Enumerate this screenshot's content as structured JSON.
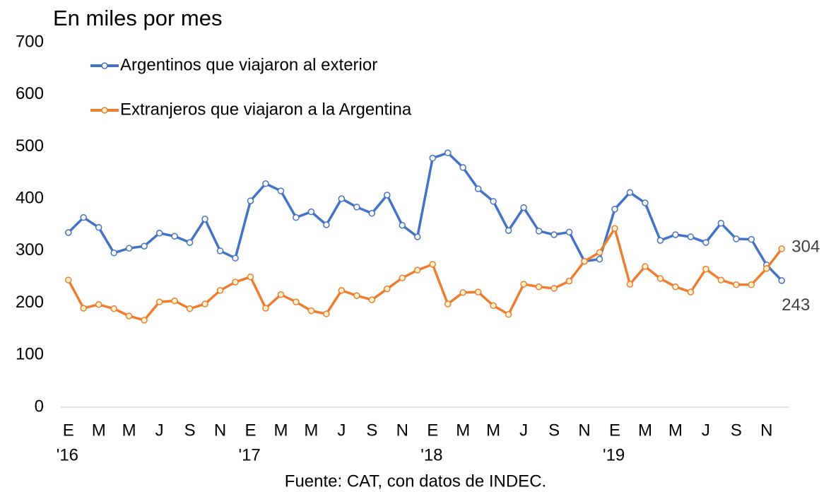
{
  "chart_data": {
    "type": "line",
    "title": "En miles por mes",
    "source": "Fuente: CAT, con datos de INDEC.",
    "categories": [
      "E",
      null,
      "M",
      null,
      "M",
      null,
      "J",
      null,
      "S",
      null,
      "N",
      null,
      "E",
      null,
      "M",
      null,
      "M",
      null,
      "J",
      null,
      "S",
      null,
      "N",
      null,
      "E",
      null,
      "M",
      null,
      "M",
      null,
      "J",
      null,
      "S",
      null,
      "N",
      null,
      "E",
      null,
      "M",
      null,
      "M",
      null,
      "J",
      null,
      "S",
      null,
      "N",
      null
    ],
    "category_years": [
      "'16",
      null,
      null,
      null,
      null,
      null,
      null,
      null,
      null,
      null,
      null,
      null,
      "'17",
      null,
      null,
      null,
      null,
      null,
      null,
      null,
      null,
      null,
      null,
      null,
      "'18",
      null,
      null,
      null,
      null,
      null,
      null,
      null,
      null,
      null,
      null,
      null,
      "'19",
      null,
      null,
      null,
      null,
      null,
      null,
      null,
      null,
      null,
      null,
      null
    ],
    "series": [
      {
        "name": "Argentinos que viajaron al exterior",
        "color": "#4472c4",
        "marker_fill": "#ffffff",
        "label_last": true,
        "values": [
          335,
          364,
          345,
          296,
          305,
          309,
          334,
          328,
          316,
          361,
          300,
          286,
          396,
          429,
          415,
          364,
          375,
          350,
          400,
          384,
          372,
          407,
          349,
          327,
          478,
          488,
          460,
          419,
          395,
          339,
          383,
          338,
          331,
          336,
          280,
          284,
          380,
          412,
          392,
          320,
          331,
          327,
          316,
          353,
          323,
          322,
          273,
          243
        ]
      },
      {
        "name": "Extranjeros que viajaron a la Argentina",
        "color": "#ed7d31",
        "marker_fill": "#fff2cc",
        "label_last": true,
        "values": [
          244,
          190,
          197,
          189,
          175,
          167,
          202,
          204,
          189,
          198,
          224,
          240,
          250,
          190,
          216,
          202,
          185,
          179,
          224,
          214,
          206,
          227,
          248,
          263,
          274,
          198,
          220,
          221,
          195,
          178,
          236,
          231,
          228,
          242,
          280,
          297,
          343,
          236,
          270,
          247,
          231,
          221,
          265,
          244,
          235,
          235,
          266,
          304
        ]
      }
    ],
    "ylim": [
      0,
      700
    ],
    "yticks": [
      0,
      100,
      200,
      300,
      400,
      500,
      600,
      700
    ],
    "grid": false
  }
}
